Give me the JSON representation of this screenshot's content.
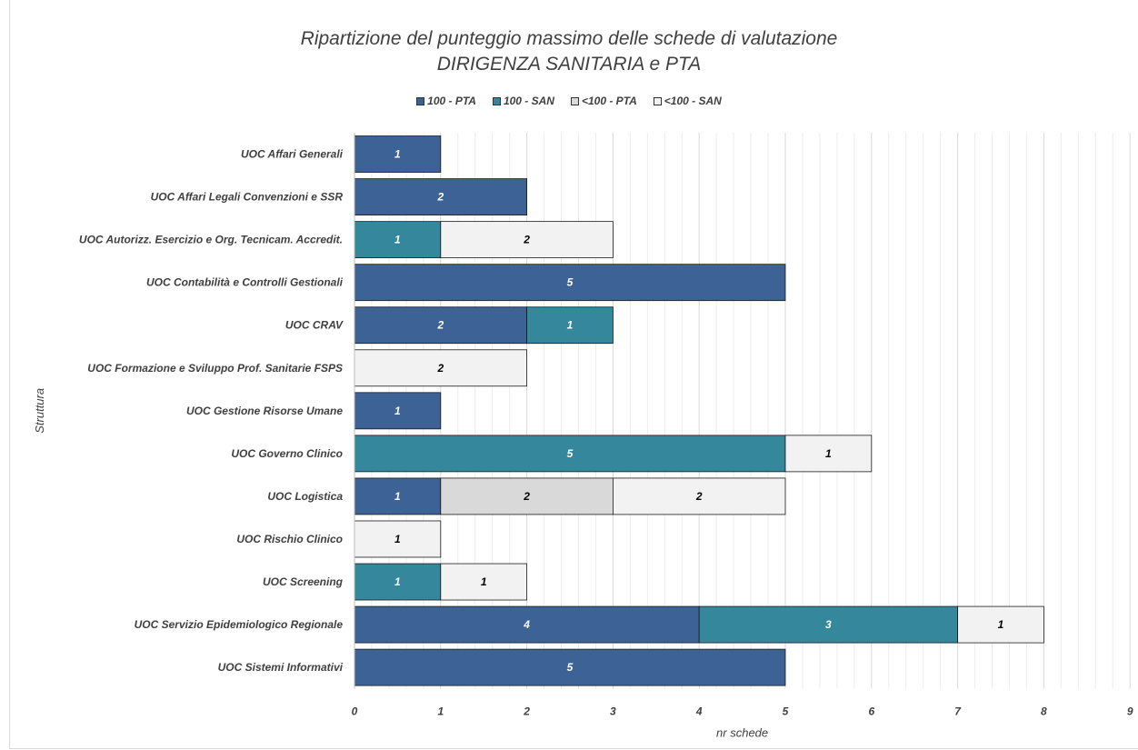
{
  "chart_data": {
    "type": "bar",
    "orientation": "horizontal",
    "stacked": true,
    "title": "Ripartizione del punteggio massimo delle schede di valutazione",
    "subtitle": "DIRIGENZA SANITARIA e PTA",
    "xlabel": "nr schede",
    "ylabel": "Struttura",
    "xlim": [
      0,
      9
    ],
    "x_ticks": [
      "0",
      "1",
      "2",
      "3",
      "4",
      "5",
      "6",
      "7",
      "8",
      "9"
    ],
    "legend_position": "top",
    "grid": true,
    "categories": [
      "UOC Affari Generali",
      "UOC Affari Legali Convenzioni e SSR",
      "UOC Autorizz. Esercizio e Org. Tecnicam. Accredit.",
      "UOC Contabilità e Controlli Gestionali",
      "UOC CRAV",
      "UOC Formazione e Sviluppo Prof. Sanitarie FSPS",
      "UOC Gestione Risorse Umane",
      "UOC Governo Clinico",
      "UOC Logistica",
      "UOC Rischio Clinico",
      "UOC Screening",
      "UOC Servizio Epidemiologico Regionale",
      "UOC Sistemi Informativi"
    ],
    "series": [
      {
        "name": "100 - PTA",
        "color": "#3c6296",
        "label_color": "#ffffff",
        "values": [
          1,
          2,
          0,
          5,
          2,
          0,
          1,
          0,
          1,
          0,
          0,
          4,
          5
        ]
      },
      {
        "name": "100 - SAN",
        "color": "#35879c",
        "label_color": "#ffffff",
        "values": [
          0,
          0,
          1,
          0,
          1,
          0,
          0,
          5,
          0,
          0,
          1,
          3,
          0
        ]
      },
      {
        "name": "<100 - PTA",
        "color": "#d9d9d9",
        "label_color": "#000000",
        "values": [
          0,
          0,
          0,
          0,
          0,
          0,
          0,
          0,
          2,
          0,
          0,
          0,
          0
        ]
      },
      {
        "name": "<100 - SAN",
        "color": "#f2f2f2",
        "label_color": "#000000",
        "values": [
          0,
          0,
          2,
          0,
          0,
          2,
          0,
          1,
          2,
          1,
          1,
          1,
          0
        ]
      }
    ]
  }
}
